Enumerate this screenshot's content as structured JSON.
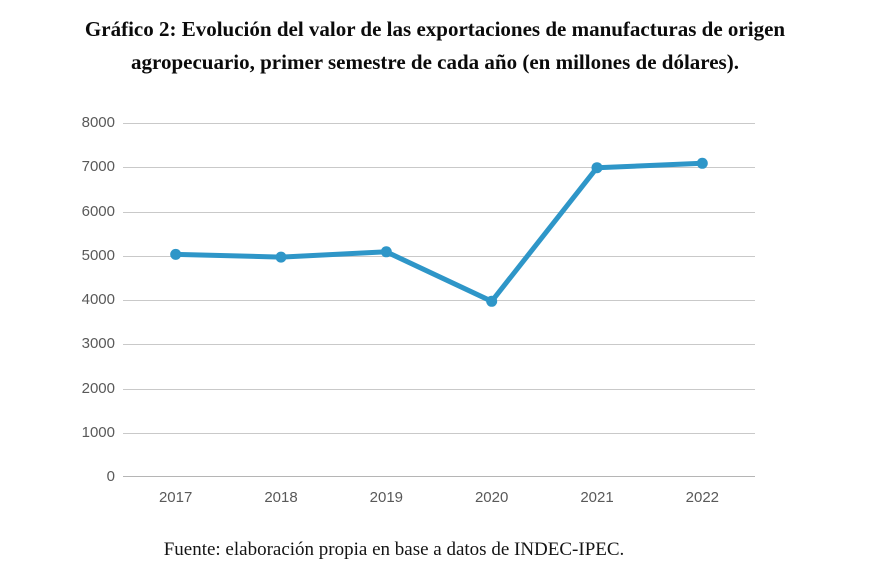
{
  "title": {
    "text": "Gráfico 2: Evolución del valor de las exportaciones de manufacturas de origen agropecuario, primer semestre de cada año (en millones de dólares)."
  },
  "footer": {
    "source_text": "Fuente: elaboración propia en base a datos de INDEC-IPEC."
  },
  "chart_data": {
    "type": "line",
    "categories": [
      "2017",
      "2018",
      "2019",
      "2020",
      "2021",
      "2022"
    ],
    "values": [
      5030,
      4970,
      5090,
      3970,
      6990,
      7090
    ],
    "title": "Gráfico 2: Evolución del valor de las exportaciones de manufacturas de origen agropecuario, primer semestre de cada año (en millones de dólares).",
    "xlabel": "",
    "ylabel": "",
    "ylim": [
      0,
      8000
    ],
    "yticks": [
      0,
      1000,
      2000,
      3000,
      4000,
      5000,
      6000,
      7000,
      8000
    ],
    "grid": true,
    "legend": false,
    "line_color": "#2e96c8",
    "marker_color": "#2e96c8",
    "gridline_color": "#c9c9c9",
    "axis_line_color": "#b5b5b5",
    "tick_label_color": "#595959"
  }
}
